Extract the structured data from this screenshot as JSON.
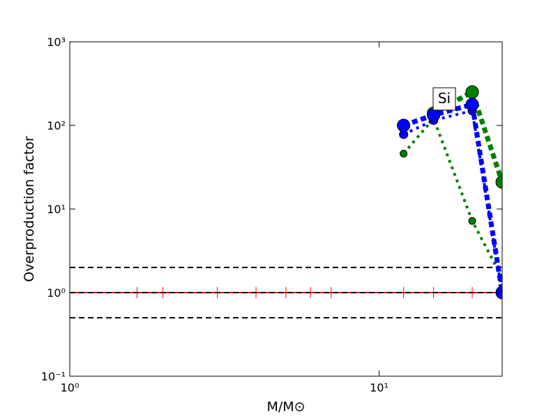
{
  "chart_data": {
    "type": "line",
    "xlabel": "M/M⊙",
    "ylabel": "Overproduction factor",
    "xscale": "log",
    "yscale": "log",
    "xlim": [
      1,
      25
    ],
    "ylim": [
      0.1,
      1000
    ],
    "xticks": [
      {
        "value": 1,
        "label": "10⁰"
      },
      {
        "value": 10,
        "label": "10¹"
      }
    ],
    "yticks": [
      {
        "value": 0.1,
        "label": "10⁻¹"
      },
      {
        "value": 1,
        "label": "10⁰"
      },
      {
        "value": 10,
        "label": "10¹"
      },
      {
        "value": 100,
        "label": "10²"
      },
      {
        "value": 1000,
        "label": "10³"
      }
    ],
    "reference_lines": [
      {
        "value": 2,
        "color": "#000000",
        "dash": "8,5"
      },
      {
        "value": 0.5,
        "color": "#000000",
        "dash": "8,5"
      },
      {
        "value": 1,
        "color": "#ff0000",
        "dash": "none"
      },
      {
        "value": 1,
        "color": "#000000",
        "dash": "8,5"
      }
    ],
    "annotation": "Si",
    "series": [
      {
        "color": "#ff0000",
        "marker": "tick",
        "line_width": 0,
        "marker_size": 8,
        "x": [
          1.65,
          2,
          3,
          4,
          5,
          6,
          7,
          12,
          15,
          20
        ],
        "values": [
          1,
          1,
          1,
          1,
          1,
          1,
          1,
          1,
          1,
          1
        ]
      },
      {
        "color": "#008000",
        "marker": "circle",
        "line_width": 4,
        "dash": "4,6",
        "marker_size": 5,
        "x": [
          12,
          15,
          20,
          25
        ],
        "values": [
          46,
          121,
          7.2,
          1.5
        ]
      },
      {
        "color": "#0000ff",
        "marker": "circle",
        "line_width": 4,
        "dash": "4,6",
        "marker_size": 6,
        "x": [
          12,
          15,
          20,
          25
        ],
        "values": [
          78,
          115,
          150,
          1
        ]
      },
      {
        "color": "#008000",
        "marker": "circle",
        "line_width": 7,
        "dash": "8,5",
        "marker_size": 9,
        "x": [
          15,
          20,
          25
        ],
        "values": [
          140,
          251,
          21
        ]
      },
      {
        "color": "#0000ff",
        "marker": "circle",
        "line_width": 7,
        "dash": "8,5",
        "marker_size": 9,
        "x": [
          12,
          15,
          20,
          25
        ],
        "values": [
          100,
          133,
          178,
          1
        ]
      }
    ]
  }
}
